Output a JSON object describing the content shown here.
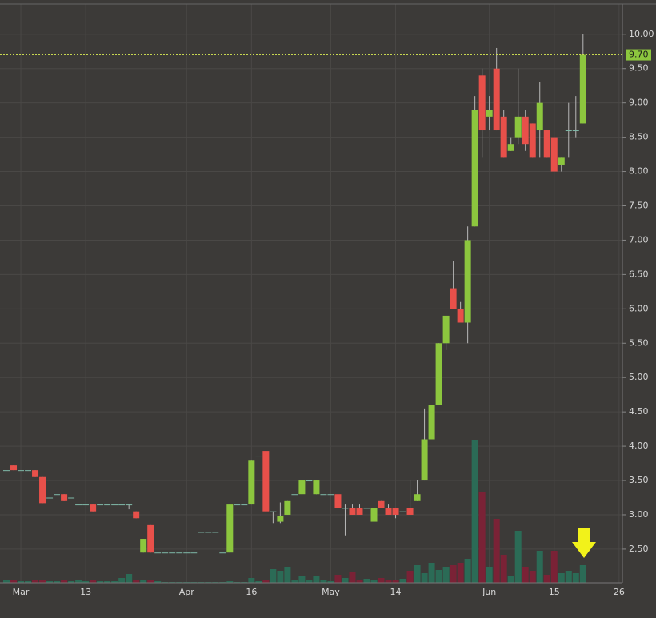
{
  "chart_data": {
    "type": "candlestick",
    "categories": [
      null,
      null,
      "Mar",
      null,
      null,
      null,
      null,
      null,
      null,
      null,
      null,
      "13",
      null,
      null,
      null,
      null,
      null,
      null,
      null,
      null,
      null,
      null,
      null,
      null,
      null,
      "Apr",
      null,
      null,
      null,
      null,
      null,
      null,
      null,
      null,
      "16",
      null,
      null,
      null,
      null,
      null,
      null,
      null,
      null,
      null,
      null,
      "May",
      null,
      null,
      null,
      null,
      null,
      null,
      null,
      null,
      "14",
      null,
      null,
      null,
      null,
      null,
      null,
      null,
      null,
      null,
      null,
      null,
      null,
      "Jun",
      null,
      null,
      null,
      null,
      null,
      null,
      null,
      null,
      "15",
      null,
      null,
      null,
      null,
      null,
      null,
      null,
      null,
      "26"
    ],
    "open": [
      3.65,
      3.72,
      3.65,
      3.65,
      3.65,
      3.55,
      3.25,
      3.3,
      3.3,
      3.25,
      3.15,
      3.15,
      3.15,
      3.15,
      3.15,
      3.15,
      3.15,
      3.15,
      3.05,
      2.45,
      2.85,
      2.45,
      2.45,
      2.45,
      2.45,
      2.45,
      2.45,
      2.75,
      2.75,
      2.75,
      2.45,
      2.45,
      3.15,
      3.15,
      3.15,
      3.85,
      3.93,
      3.05,
      2.9,
      3.0,
      3.3,
      3.3,
      3.5,
      3.3,
      3.3,
      3.3,
      3.3,
      3.1,
      3.1,
      3.1,
      3.1,
      2.9,
      3.2,
      3.1,
      3.1,
      3.05,
      3.1,
      3.2,
      3.5,
      4.1,
      4.6,
      5.5,
      6.3,
      6.0,
      5.8,
      7.2,
      9.4,
      8.8,
      9.5,
      8.8,
      8.3,
      8.5,
      8.8,
      8.7,
      8.6,
      8.6,
      8.5,
      8.1,
      8.6,
      8.6,
      8.7,
      null,
      null,
      null,
      null,
      null
    ],
    "high": [
      3.65,
      3.72,
      3.65,
      3.65,
      3.65,
      3.55,
      3.25,
      3.3,
      3.3,
      3.25,
      3.15,
      3.15,
      3.15,
      3.15,
      3.15,
      3.15,
      3.15,
      3.15,
      3.05,
      2.65,
      2.85,
      2.45,
      2.45,
      2.45,
      2.45,
      2.45,
      2.45,
      2.75,
      2.75,
      2.75,
      2.45,
      3.15,
      3.15,
      3.15,
      3.8,
      3.85,
      3.93,
      3.05,
      3.18,
      3.2,
      3.3,
      3.5,
      3.5,
      3.5,
      3.3,
      3.3,
      3.3,
      3.15,
      3.15,
      3.15,
      3.1,
      3.2,
      3.2,
      3.15,
      3.1,
      3.05,
      3.5,
      3.5,
      4.55,
      4.6,
      5.5,
      5.9,
      6.7,
      6.1,
      7.2,
      9.1,
      9.5,
      9.1,
      9.8,
      8.9,
      8.5,
      9.5,
      8.9,
      8.7,
      9.3,
      8.6,
      8.5,
      8.2,
      9.0,
      9.1,
      10.0,
      null,
      null,
      null,
      null,
      null
    ],
    "low": [
      3.65,
      3.65,
      3.65,
      3.65,
      3.55,
      3.17,
      3.25,
      3.3,
      3.2,
      3.25,
      3.15,
      3.15,
      3.05,
      3.15,
      3.15,
      3.15,
      3.15,
      3.08,
      2.95,
      2.45,
      2.45,
      2.45,
      2.45,
      2.45,
      2.45,
      2.45,
      2.45,
      2.75,
      2.75,
      2.75,
      2.45,
      2.45,
      3.15,
      3.15,
      3.15,
      3.85,
      3.05,
      2.88,
      2.88,
      3.0,
      3.3,
      3.3,
      3.5,
      3.3,
      3.3,
      3.3,
      3.1,
      2.7,
      3.0,
      3.0,
      3.1,
      2.9,
      3.1,
      3.0,
      2.95,
      3.05,
      3.0,
      3.2,
      3.5,
      4.1,
      4.6,
      5.4,
      6.0,
      5.8,
      5.5,
      7.2,
      8.2,
      8.6,
      8.6,
      8.2,
      8.3,
      8.4,
      8.3,
      8.2,
      8.2,
      8.2,
      8.0,
      8.0,
      8.2,
      8.5,
      8.7,
      null,
      null,
      null,
      null,
      null
    ],
    "close": [
      3.65,
      3.65,
      3.65,
      3.65,
      3.55,
      3.17,
      3.25,
      3.3,
      3.2,
      3.25,
      3.15,
      3.15,
      3.05,
      3.15,
      3.15,
      3.15,
      3.15,
      3.15,
      2.95,
      2.65,
      2.45,
      2.45,
      2.45,
      2.45,
      2.45,
      2.45,
      2.45,
      2.75,
      2.75,
      2.75,
      2.45,
      3.15,
      3.15,
      3.15,
      3.8,
      3.85,
      3.05,
      3.05,
      2.98,
      3.2,
      3.3,
      3.5,
      3.5,
      3.5,
      3.3,
      3.3,
      3.1,
      3.1,
      3.0,
      3.0,
      3.1,
      3.1,
      3.1,
      3.0,
      3.0,
      3.05,
      3.0,
      3.3,
      4.1,
      4.6,
      5.5,
      5.9,
      6.0,
      5.8,
      7.0,
      8.9,
      8.6,
      8.9,
      8.6,
      8.2,
      8.4,
      8.8,
      8.4,
      8.2,
      9.0,
      8.2,
      8.0,
      8.2,
      8.6,
      8.6,
      9.7,
      null,
      null,
      null,
      null,
      null
    ],
    "volume": [
      3,
      4,
      2,
      2,
      3,
      4,
      2,
      2,
      4,
      2,
      3,
      2,
      4,
      2,
      2,
      2,
      6,
      11,
      3,
      4,
      3,
      2,
      1,
      1,
      1,
      1,
      1,
      1,
      1,
      1,
      1,
      2,
      1,
      1,
      6,
      2,
      3,
      17,
      15,
      20,
      4,
      8,
      4,
      8,
      4,
      2,
      10,
      6,
      13,
      3,
      5,
      4,
      6,
      4,
      4,
      5,
      15,
      22,
      12,
      25,
      16,
      20,
      22,
      25,
      30,
      179,
      113,
      20,
      80,
      35,
      8,
      65,
      20,
      15,
      40,
      10,
      40,
      12,
      15,
      12,
      22,
      null,
      null,
      null,
      null,
      null
    ],
    "up_color": "#8cc63e",
    "down_color": "#e8504a",
    "flat_color": "#7fb9a8",
    "volume_up_color": "#2b6b56",
    "volume_down_color": "#7a2236",
    "ylim": [
      2.01,
      10.44
    ],
    "yticks": [
      {
        "value": 2.5,
        "label": "2.50"
      },
      {
        "value": 3.0,
        "label": "3.00"
      },
      {
        "value": 3.5,
        "label": "3.50"
      },
      {
        "value": 4.0,
        "label": "4.00"
      },
      {
        "value": 4.5,
        "label": "4.50"
      },
      {
        "value": 5.0,
        "label": "5.00"
      },
      {
        "value": 5.5,
        "label": "5.50"
      },
      {
        "value": 6.0,
        "label": "6.00"
      },
      {
        "value": 6.5,
        "label": "6.50"
      },
      {
        "value": 7.0,
        "label": "7.00"
      },
      {
        "value": 7.5,
        "label": "7.50"
      },
      {
        "value": 8.0,
        "label": "8.00"
      },
      {
        "value": 8.5,
        "label": "8.50"
      },
      {
        "value": 9.0,
        "label": "9.00"
      },
      {
        "value": 9.5,
        "label": "9.50"
      },
      {
        "value": 10.0,
        "label": "10.00"
      }
    ],
    "y2lim": [
      0,
      200
    ],
    "last_price": {
      "value": 9.7,
      "label": "9.70"
    },
    "grid": true
  }
}
